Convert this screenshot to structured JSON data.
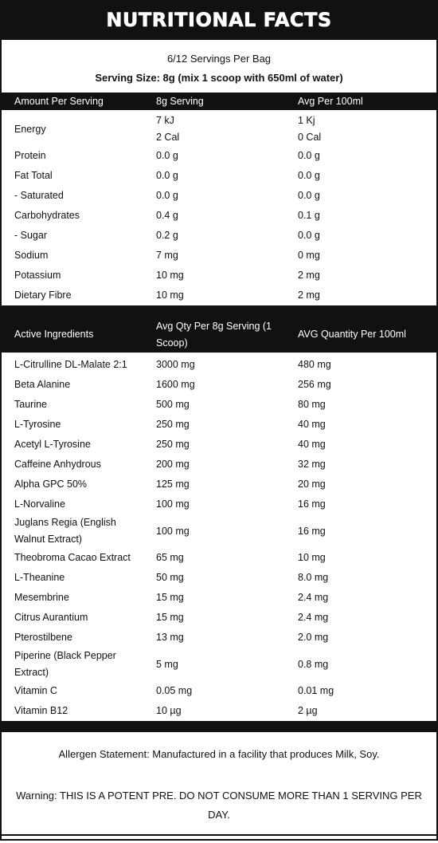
{
  "header": {
    "title": "NUTRITIONAL FACTS"
  },
  "servings": {
    "per_bag": "6/12 Servings Per Bag",
    "size": "Serving Size: 8g (mix 1 scoop with 650ml of water)"
  },
  "nutrition": {
    "columns": [
      "Amount Per Serving",
      "8g Serving",
      "Avg Per 100ml"
    ],
    "rows": [
      [
        "Energy",
        [
          "7 kJ",
          "2 Cal"
        ],
        [
          "1 Kj",
          "0 Cal"
        ]
      ],
      [
        "Protein",
        "0.0 g",
        "0.0 g"
      ],
      [
        "Fat Total",
        "0.0 g",
        "0.0 g"
      ],
      [
        "- Saturated",
        "0.0 g",
        "0.0 g"
      ],
      [
        "Carbohydrates",
        "0.4 g",
        "0.1 g"
      ],
      [
        "- Sugar",
        "0.2 g",
        "0.0 g"
      ],
      [
        "Sodium",
        "7 mg",
        "0 mg"
      ],
      [
        "Potassium",
        "10 mg",
        "2 mg"
      ],
      [
        "Dietary Fibre",
        "10 mg",
        "2 mg"
      ]
    ]
  },
  "active": {
    "columns": [
      "Active Ingredients",
      "Avg Qty Per 8g Serving (1 Scoop)",
      "AVG Quantity Per 100ml"
    ],
    "rows": [
      [
        "L-Citrulline DL-Malate 2:1",
        "3000 mg",
        "480 mg"
      ],
      [
        "Beta Alanine",
        "1600 mg",
        "256 mg"
      ],
      [
        "Taurine",
        "500 mg",
        "80 mg"
      ],
      [
        "L-Tyrosine",
        "250 mg",
        "40 mg"
      ],
      [
        "Acetyl L-Tyrosine",
        "250 mg",
        "40 mg"
      ],
      [
        "Caffeine Anhydrous",
        "200 mg",
        "32 mg"
      ],
      [
        "Alpha GPC 50%",
        "125 mg",
        "20 mg"
      ],
      [
        "L-Norvaline",
        "100 mg",
        "16 mg"
      ],
      [
        "Juglans Regia (English Walnut Extract)",
        "100 mg",
        "16 mg"
      ],
      [
        "Theobroma Cacao Extract",
        "65 mg",
        "10 mg"
      ],
      [
        "L-Theanine",
        "50 mg",
        "8.0 mg"
      ],
      [
        "Mesembrine",
        "15 mg",
        "2.4 mg"
      ],
      [
        "Citrus Aurantium",
        "15 mg",
        "2.4 mg"
      ],
      [
        "Pterostilbene",
        "13 mg",
        "2.0 mg"
      ],
      [
        "Piperine (Black Pepper Extract)",
        "5 mg",
        "0.8 mg"
      ],
      [
        "Vitamin C",
        "0.05 mg",
        "0.01 mg"
      ],
      [
        "Vitamin B12",
        "10 µg",
        "2 µg"
      ]
    ]
  },
  "footer": {
    "allergen": "Allergen Statement: Manufactured in a facility that produces Milk, Soy.",
    "warning": "Warning: THIS IS A POTENT PRE. DO NOT CONSUME MORE THAN 1 SERVING PER DAY."
  }
}
